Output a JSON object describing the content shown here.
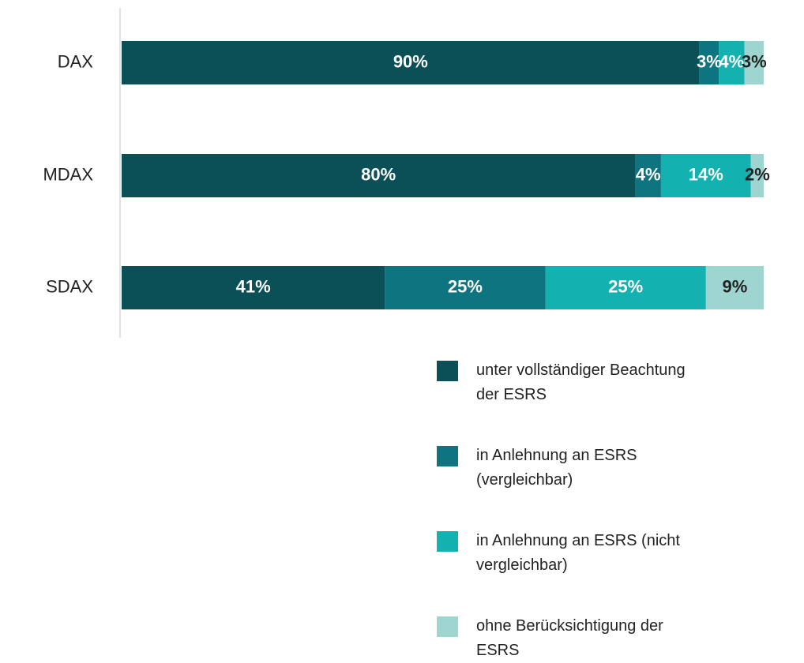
{
  "chart_data": {
    "type": "stacked-bar-horizontal",
    "categories": [
      "DAX",
      "MDAX",
      "SDAX"
    ],
    "series": [
      {
        "name": "unter vollständiger Beachtung der ESRS",
        "color": "#0b4f57",
        "values": [
          90,
          80,
          41
        ],
        "value_labels": [
          "90%",
          "80%",
          "41%"
        ]
      },
      {
        "name": "in Anlehnung an ESRS (vergleichbar)",
        "color": "#0d7480",
        "values": [
          3,
          4,
          25
        ],
        "value_labels": [
          "3%",
          "4%",
          "25%"
        ]
      },
      {
        "name": "in Anlehnung an ESRS (nicht vergleichbar)",
        "color": "#14b1b1",
        "values": [
          4,
          14,
          25
        ],
        "value_labels": [
          "4%",
          "14%",
          "25%"
        ]
      },
      {
        "name": "ohne Berücksichtigung der ESRS",
        "color": "#9fd5d1",
        "values": [
          3,
          2,
          9
        ],
        "value_labels": [
          "3%",
          "2%",
          "9%"
        ]
      }
    ],
    "xlim": [
      0,
      100
    ]
  }
}
